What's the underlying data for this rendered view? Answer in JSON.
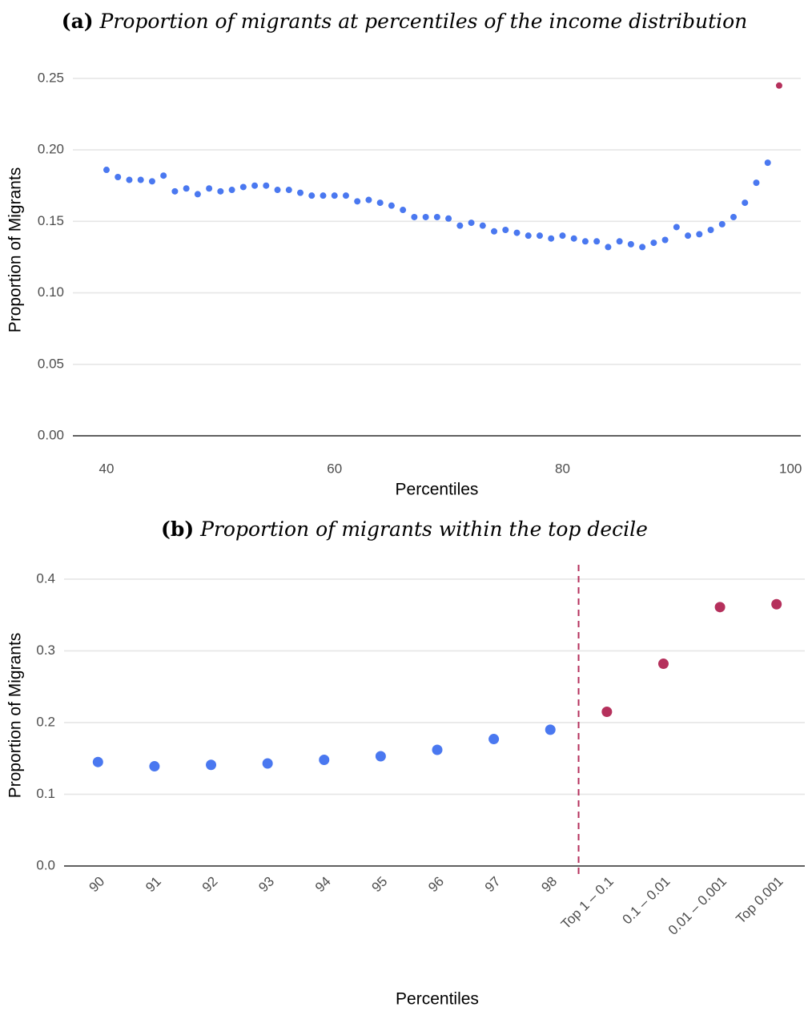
{
  "chart_data": [
    {
      "type": "scatter",
      "label": "(a)",
      "title": "Proportion of migrants at percentiles of the income distribution",
      "xlabel": "Percentiles",
      "ylabel": "Proportion of Migrants",
      "xlim": [
        37.05,
        100.9
      ],
      "ylim": [
        0,
        0.26
      ],
      "xticks": [
        40,
        60,
        80,
        100
      ],
      "yticks": [
        {
          "value": 0,
          "label": "0.00"
        },
        0.05,
        {
          "value": 0.1,
          "label": "0.10"
        },
        0.15,
        {
          "value": 0.2,
          "label": "0.20"
        },
        0.25
      ],
      "grid": true,
      "series": [
        {
          "color": "#4a78f0",
          "x": [
            40,
            41,
            42,
            43,
            44,
            45,
            46,
            47,
            48,
            49,
            50,
            51,
            52,
            53,
            54,
            55,
            56,
            57,
            58,
            59,
            60,
            61,
            62,
            63,
            64,
            65,
            66,
            67,
            68,
            69,
            70,
            71,
            72,
            73,
            74,
            75,
            76,
            77,
            78,
            79,
            80,
            81,
            82,
            83,
            84,
            85,
            86,
            87,
            88,
            89,
            90,
            91,
            92,
            93,
            94,
            95,
            96,
            97,
            98
          ],
          "values": [
            0.186,
            0.181,
            0.179,
            0.179,
            0.178,
            0.182,
            0.171,
            0.173,
            0.169,
            0.173,
            0.171,
            0.172,
            0.174,
            0.175,
            0.175,
            0.172,
            0.172,
            0.17,
            0.168,
            0.168,
            0.168,
            0.168,
            0.164,
            0.165,
            0.163,
            0.161,
            0.158,
            0.153,
            0.153,
            0.153,
            0.152,
            0.147,
            0.149,
            0.147,
            0.143,
            0.144,
            0.142,
            0.14,
            0.14,
            0.138,
            0.14,
            0.138,
            0.136,
            0.136,
            0.132,
            0.136,
            0.134,
            0.132,
            0.135,
            0.137,
            0.146,
            0.14,
            0.141,
            0.144,
            0.148,
            0.153,
            0.163,
            0.177,
            0.191
          ]
        },
        {
          "color": "#b5305c",
          "x": [
            99
          ],
          "values": [
            0.245
          ]
        }
      ]
    },
    {
      "type": "scatter",
      "label": "(b)",
      "title": "Proportion of migrants within the top decile",
      "xlabel": "Percentiles",
      "ylabel": "Proportion of Migrants",
      "categories": [
        "90",
        "91",
        "92",
        "93",
        "94",
        "95",
        "96",
        "97",
        "98",
        "Top 1 – 0.1",
        "0.1 – 0.01",
        "0.01 – 0.001",
        "Top 0.001"
      ],
      "ylim": [
        0,
        0.42
      ],
      "yticks": [
        {
          "value": 0,
          "label": "0.0"
        },
        0.1,
        0.2,
        0.3,
        0.4
      ],
      "grid": true,
      "series": [
        {
          "color": "#4a78f0",
          "values": [
            0.145,
            0.139,
            0.141,
            0.143,
            0.148,
            0.153,
            0.162,
            0.177,
            0.19,
            null,
            null,
            null,
            null
          ]
        },
        {
          "color": "#b5305c",
          "values": [
            null,
            null,
            null,
            null,
            null,
            null,
            null,
            null,
            null,
            0.215,
            0.282,
            0.361,
            0.365
          ]
        }
      ]
    }
  ]
}
